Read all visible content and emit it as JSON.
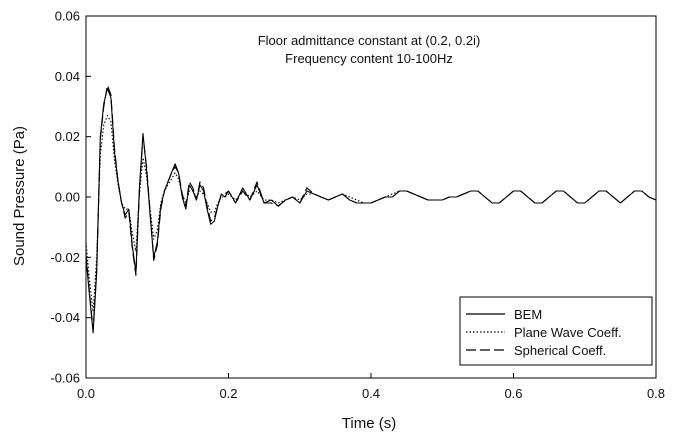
{
  "chart_data": {
    "type": "line",
    "title": "",
    "annotations": [
      "Floor admittance constant at (0.2, 0.2i)",
      "Frequency content 10-100Hz"
    ],
    "xlabel": "Time (s)",
    "ylabel": "Sound Pressure (Pa)",
    "xlim": [
      0.0,
      0.8
    ],
    "ylim": [
      -0.06,
      0.06
    ],
    "xticks": [
      0.0,
      0.2,
      0.4,
      0.6,
      0.8
    ],
    "xtick_labels": [
      "0.0",
      "0.2",
      "0.4",
      "0.6",
      "0.8"
    ],
    "yticks": [
      -0.06,
      -0.04,
      -0.02,
      0.0,
      0.02,
      0.04,
      0.06
    ],
    "ytick_labels": [
      "-0.06",
      "-0.04",
      "-0.02",
      "0.00",
      "0.02",
      "0.04",
      "0.06"
    ],
    "grid": false,
    "legend_position": "bottom-right",
    "series": [
      {
        "name": "BEM",
        "style": "solid",
        "color": "#000000",
        "x": [
          0.0,
          0.005,
          0.01,
          0.015,
          0.02,
          0.025,
          0.03,
          0.035,
          0.04,
          0.045,
          0.05,
          0.055,
          0.06,
          0.065,
          0.07,
          0.075,
          0.08,
          0.085,
          0.09,
          0.095,
          0.1,
          0.105,
          0.11,
          0.115,
          0.12,
          0.125,
          0.13,
          0.135,
          0.14,
          0.145,
          0.15,
          0.155,
          0.16,
          0.165,
          0.17,
          0.175,
          0.18,
          0.185,
          0.19,
          0.195,
          0.2,
          0.21,
          0.22,
          0.23,
          0.24,
          0.25,
          0.26,
          0.27,
          0.28,
          0.29,
          0.3,
          0.31,
          0.32,
          0.33,
          0.34,
          0.35,
          0.36,
          0.37,
          0.38,
          0.39,
          0.4,
          0.41,
          0.42,
          0.43,
          0.44,
          0.45,
          0.46,
          0.47,
          0.48,
          0.49,
          0.5,
          0.51,
          0.52,
          0.53,
          0.54,
          0.55,
          0.56,
          0.57,
          0.58,
          0.59,
          0.6,
          0.61,
          0.62,
          0.63,
          0.64,
          0.65,
          0.66,
          0.67,
          0.68,
          0.69,
          0.7,
          0.71,
          0.72,
          0.73,
          0.74,
          0.75,
          0.76,
          0.77,
          0.78,
          0.79,
          0.8
        ],
        "y": [
          -0.02,
          -0.033,
          -0.045,
          -0.025,
          0.02,
          0.031,
          0.036,
          0.033,
          0.015,
          0.005,
          -0.002,
          -0.006,
          -0.004,
          -0.016,
          -0.025,
          0.003,
          0.021,
          0.009,
          -0.006,
          -0.02,
          -0.015,
          -0.003,
          0.002,
          0.005,
          0.008,
          0.011,
          0.008,
          0.0,
          -0.004,
          0.004,
          0.002,
          -0.001,
          0.004,
          0.002,
          -0.004,
          -0.009,
          -0.008,
          -0.003,
          0.001,
          0.0,
          0.002,
          -0.002,
          0.003,
          -0.001,
          0.004,
          -0.002,
          -0.001,
          -0.003,
          -0.001,
          0.0,
          -0.002,
          0.002,
          0.001,
          0.0,
          -0.001,
          0.0,
          0.001,
          -0.001,
          -0.002,
          -0.002,
          -0.002,
          -0.001,
          0.0,
          0.0,
          0.002,
          0.002,
          0.001,
          0.0,
          -0.001,
          -0.001,
          -0.001,
          0.0,
          0.0,
          0.001,
          0.002,
          0.002,
          0.0,
          -0.002,
          -0.002,
          0.0,
          0.002,
          0.002,
          0.0,
          -0.002,
          -0.002,
          0.0,
          0.002,
          0.002,
          0.0,
          -0.002,
          -0.002,
          0.0,
          0.002,
          0.002,
          0.0,
          -0.002,
          0.0,
          0.002,
          0.002,
          0.0,
          -0.001
        ]
      },
      {
        "name": "Plane Wave Coeff.",
        "style": "dotted",
        "color": "#000000",
        "x": [
          0.0,
          0.005,
          0.01,
          0.015,
          0.02,
          0.025,
          0.03,
          0.035,
          0.04,
          0.045,
          0.05,
          0.055,
          0.06,
          0.065,
          0.07,
          0.075,
          0.08,
          0.085,
          0.09,
          0.095,
          0.1,
          0.105,
          0.11,
          0.115,
          0.12,
          0.125,
          0.13,
          0.135,
          0.14,
          0.145,
          0.15,
          0.155,
          0.16,
          0.165,
          0.17,
          0.175,
          0.18,
          0.185,
          0.19,
          0.195,
          0.2,
          0.21,
          0.22,
          0.23,
          0.24,
          0.25,
          0.26,
          0.27,
          0.28,
          0.29,
          0.3,
          0.31,
          0.32,
          0.33,
          0.34,
          0.35,
          0.36,
          0.37,
          0.38,
          0.39,
          0.4,
          0.41,
          0.42,
          0.43,
          0.44,
          0.45,
          0.46,
          0.47,
          0.48,
          0.49,
          0.5,
          0.51,
          0.52,
          0.53,
          0.54,
          0.55,
          0.56,
          0.57,
          0.58,
          0.59,
          0.6,
          0.61,
          0.62,
          0.63,
          0.64,
          0.65,
          0.66,
          0.67,
          0.68,
          0.69,
          0.7,
          0.71,
          0.72,
          0.73,
          0.74,
          0.75,
          0.76,
          0.77,
          0.78,
          0.79,
          0.8
        ],
        "y": [
          -0.015,
          -0.028,
          -0.038,
          -0.02,
          0.014,
          0.024,
          0.027,
          0.025,
          0.012,
          0.004,
          -0.002,
          -0.004,
          -0.004,
          -0.012,
          -0.018,
          0.001,
          0.013,
          0.007,
          -0.004,
          -0.014,
          -0.011,
          -0.002,
          0.002,
          0.004,
          0.006,
          0.008,
          0.006,
          0.001,
          -0.002,
          0.002,
          0.002,
          0.0,
          0.002,
          0.001,
          -0.002,
          -0.005,
          -0.005,
          -0.002,
          0.0,
          0.0,
          0.001,
          -0.001,
          0.002,
          0.0,
          0.002,
          -0.001,
          -0.001,
          -0.002,
          -0.001,
          0.0,
          -0.001,
          0.001,
          0.001,
          0.0,
          -0.001,
          0.0,
          0.001,
          0.0,
          -0.001,
          -0.002,
          -0.002,
          -0.001,
          0.0,
          0.001,
          0.002,
          0.002,
          0.001,
          0.0,
          -0.001,
          -0.001,
          -0.001,
          0.0,
          0.0,
          0.001,
          0.002,
          0.002,
          0.0,
          -0.002,
          -0.002,
          0.0,
          0.002,
          0.002,
          0.0,
          -0.002,
          -0.002,
          0.0,
          0.002,
          0.002,
          0.0,
          -0.002,
          -0.002,
          0.0,
          0.002,
          0.002,
          0.0,
          -0.002,
          0.0,
          0.002,
          0.002,
          0.0,
          -0.001
        ]
      },
      {
        "name": "Spherical Coeff.",
        "style": "dashed",
        "color": "#000000",
        "x": [
          0.0,
          0.005,
          0.01,
          0.015,
          0.02,
          0.025,
          0.03,
          0.035,
          0.04,
          0.045,
          0.05,
          0.055,
          0.06,
          0.065,
          0.07,
          0.075,
          0.08,
          0.085,
          0.09,
          0.095,
          0.1,
          0.105,
          0.11,
          0.115,
          0.12,
          0.125,
          0.13,
          0.135,
          0.14,
          0.145,
          0.15,
          0.155,
          0.16,
          0.165,
          0.17,
          0.175,
          0.18,
          0.185,
          0.19,
          0.195,
          0.2,
          0.21,
          0.22,
          0.23,
          0.24,
          0.25,
          0.26,
          0.27,
          0.28,
          0.29,
          0.3,
          0.31,
          0.32,
          0.33,
          0.34,
          0.35,
          0.36,
          0.37,
          0.38,
          0.39,
          0.4,
          0.41,
          0.42,
          0.43,
          0.44,
          0.45,
          0.46,
          0.47,
          0.48,
          0.49,
          0.5,
          0.51,
          0.52,
          0.53,
          0.54,
          0.55,
          0.56,
          0.57,
          0.58,
          0.59,
          0.6,
          0.61,
          0.62,
          0.63,
          0.64,
          0.65,
          0.66,
          0.67,
          0.68,
          0.69,
          0.7,
          0.71,
          0.72,
          0.73,
          0.74,
          0.75,
          0.76,
          0.77,
          0.78,
          0.79,
          0.8
        ],
        "y": [
          -0.019,
          -0.032,
          -0.044,
          -0.024,
          0.019,
          0.03,
          0.037,
          0.034,
          0.016,
          0.005,
          -0.002,
          -0.007,
          -0.005,
          -0.017,
          -0.026,
          0.002,
          0.02,
          0.01,
          -0.005,
          -0.021,
          -0.016,
          -0.004,
          0.002,
          0.005,
          0.008,
          0.01,
          0.008,
          0.001,
          -0.003,
          0.005,
          0.003,
          -0.001,
          0.005,
          0.003,
          -0.003,
          -0.008,
          -0.007,
          -0.003,
          0.001,
          0.001,
          0.002,
          -0.002,
          0.002,
          -0.001,
          0.005,
          -0.002,
          -0.002,
          -0.003,
          -0.001,
          0.0,
          -0.002,
          0.003,
          0.001,
          0.0,
          -0.001,
          0.0,
          0.001,
          -0.001,
          -0.002,
          -0.002,
          -0.002,
          -0.001,
          0.0,
          0.0,
          0.002,
          0.002,
          0.001,
          0.0,
          -0.001,
          -0.001,
          -0.001,
          0.0,
          0.0,
          0.001,
          0.002,
          0.002,
          0.0,
          -0.002,
          -0.002,
          0.0,
          0.002,
          0.002,
          0.0,
          -0.002,
          -0.002,
          0.0,
          0.002,
          0.002,
          0.0,
          -0.002,
          -0.002,
          0.0,
          0.002,
          0.002,
          0.0,
          -0.002,
          0.0,
          0.002,
          0.002,
          0.0,
          -0.001
        ]
      }
    ]
  }
}
